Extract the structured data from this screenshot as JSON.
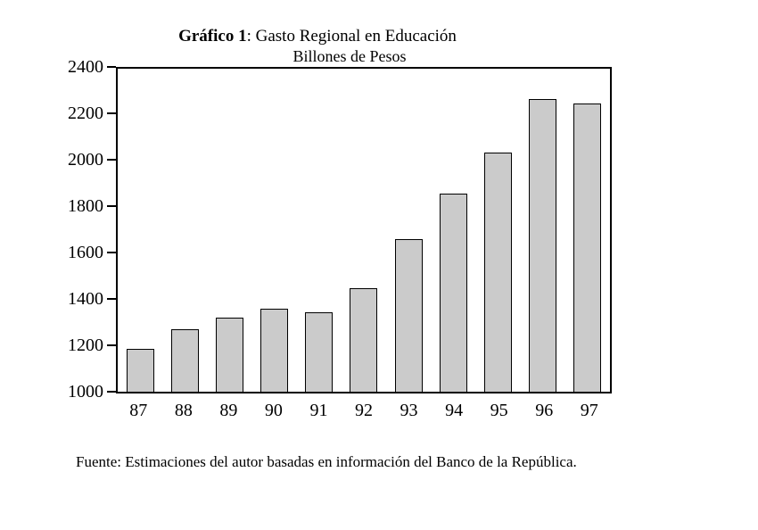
{
  "chart": {
    "title_bold": "Gráfico 1",
    "title_rest": ": Gasto Regional en Educación",
    "subtitle": "Billones de Pesos",
    "source": "Fuente: Estimaciones del autor basadas en información del Banco de la República."
  },
  "chart_data": {
    "type": "bar",
    "title": "Gráfico 1: Gasto Regional en Educación",
    "subtitle": "Billones de Pesos",
    "categories": [
      "87",
      "88",
      "89",
      "90",
      "91",
      "92",
      "93",
      "94",
      "95",
      "96",
      "97"
    ],
    "values": [
      1185,
      1270,
      1320,
      1360,
      1345,
      1450,
      1660,
      1860,
      2035,
      2270,
      2250
    ],
    "xlabel": "",
    "ylabel": "",
    "ylim": [
      1000,
      2400
    ],
    "yticks": [
      1000,
      1200,
      1400,
      1600,
      1800,
      2000,
      2200,
      2400
    ],
    "grid": false,
    "legend": "none",
    "bar_fill_color": "#cbcbcb",
    "bar_border_color": "#000000",
    "source_note": "Fuente: Estimaciones del autor basadas en información del Banco de la República."
  }
}
